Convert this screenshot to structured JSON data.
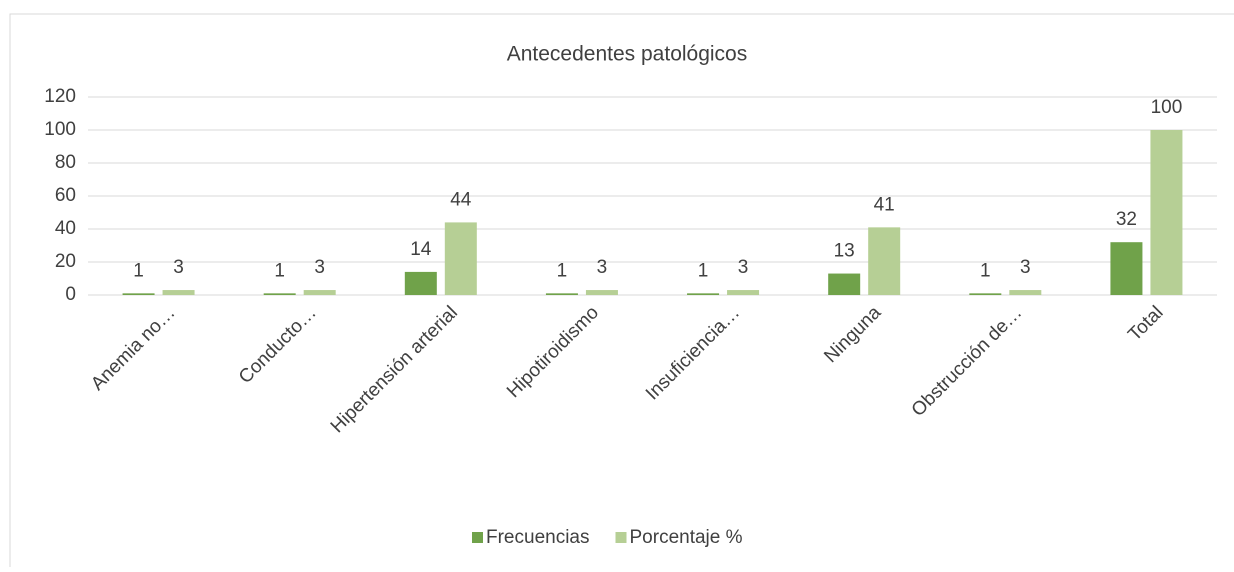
{
  "chart_data": {
    "type": "bar",
    "title": "Antecedentes patológicos",
    "categories": [
      "Anemia no…",
      "Conducto…",
      "Hipertensión arterial",
      "Hipotiroidismo",
      "Insuficiencia…",
      "Ninguna",
      "Obstrucción de…",
      "Total"
    ],
    "series": [
      {
        "name": "Frecuencias",
        "color": "#70a24a",
        "values": [
          1,
          1,
          14,
          1,
          1,
          13,
          1,
          32
        ]
      },
      {
        "name": "Porcentaje %",
        "color": "#b6cf95",
        "values": [
          3,
          3,
          44,
          3,
          3,
          41,
          3,
          100
        ]
      }
    ],
    "ylim": [
      0,
      120
    ],
    "yticks": [
      0,
      20,
      40,
      60,
      80,
      100,
      120
    ],
    "grid": true,
    "legend": "bottom"
  }
}
